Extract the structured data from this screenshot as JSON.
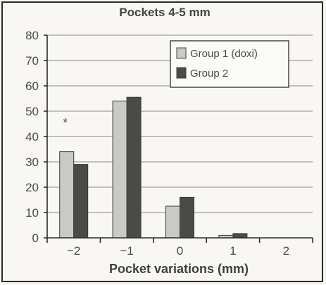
{
  "chart_data": {
    "type": "bar",
    "title": "Pockets 4-5 mm",
    "xlabel": "Pocket variations (mm)",
    "ylabel": "",
    "categories": [
      "−2",
      "−1",
      "0",
      "1",
      "2"
    ],
    "series": [
      {
        "name": "Group 1 (doxi)",
        "values": [
          34,
          54,
          12.5,
          1,
          0
        ],
        "color": "#c9c9c5"
      },
      {
        "name": "Group 2",
        "values": [
          29,
          55.5,
          16,
          1.7,
          0
        ],
        "color": "#4a4a48"
      }
    ],
    "ylim": [
      0,
      80
    ],
    "yticks": [
      0,
      10,
      20,
      30,
      40,
      50,
      60,
      70,
      80
    ],
    "grid": true,
    "legend": "top-right",
    "annotations": [
      {
        "text": "*",
        "category": "−2",
        "y": 44
      }
    ]
  }
}
